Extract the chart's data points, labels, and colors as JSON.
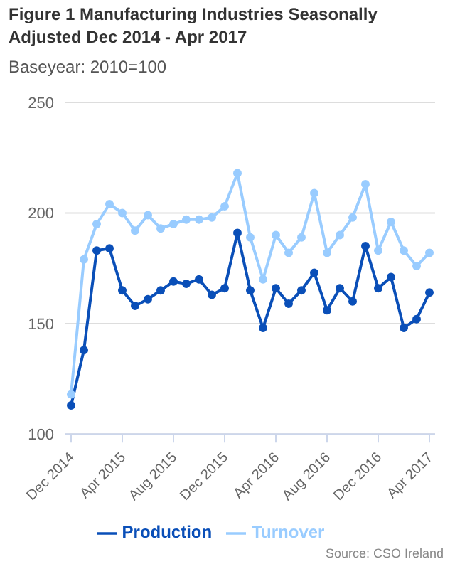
{
  "chart_data": {
    "type": "line",
    "title": "Figure 1 Manufacturing Industries Seasonally Adjusted Dec 2014 - Apr 2017",
    "subtitle": "Baseyear: 2010=100",
    "categories": [
      "Dec 2014",
      null,
      null,
      null,
      "Apr 2015",
      null,
      null,
      null,
      "Aug 2015",
      null,
      null,
      null,
      "Dec 2015",
      null,
      null,
      null,
      "Apr 2016",
      null,
      null,
      null,
      "Aug 2016",
      null,
      null,
      null,
      "Dec 2016",
      null,
      null,
      null,
      "Apr 2017"
    ],
    "series": [
      {
        "name": "Production",
        "color": "#0a4fb8",
        "values": [
          113,
          138,
          183,
          184,
          165,
          158,
          161,
          165,
          169,
          168,
          170,
          163,
          166,
          191,
          165,
          148,
          166,
          159,
          165,
          173,
          156,
          166,
          160,
          185,
          166,
          171,
          148,
          152,
          164
        ]
      },
      {
        "name": "Turnover",
        "color": "#99ccff",
        "values": [
          118,
          179,
          195,
          204,
          200,
          192,
          199,
          193,
          195,
          197,
          197,
          198,
          203,
          218,
          189,
          170,
          190,
          182,
          189,
          209,
          182,
          190,
          198,
          213,
          183,
          196,
          183,
          176,
          182
        ]
      }
    ],
    "ylim": [
      100,
      250
    ],
    "yticks": [
      100,
      150,
      200,
      250
    ],
    "grid": "y",
    "legend": "bottom",
    "marker": "circle",
    "line_style": "solid",
    "annotations": [
      "Source: CSO Ireland"
    ]
  }
}
